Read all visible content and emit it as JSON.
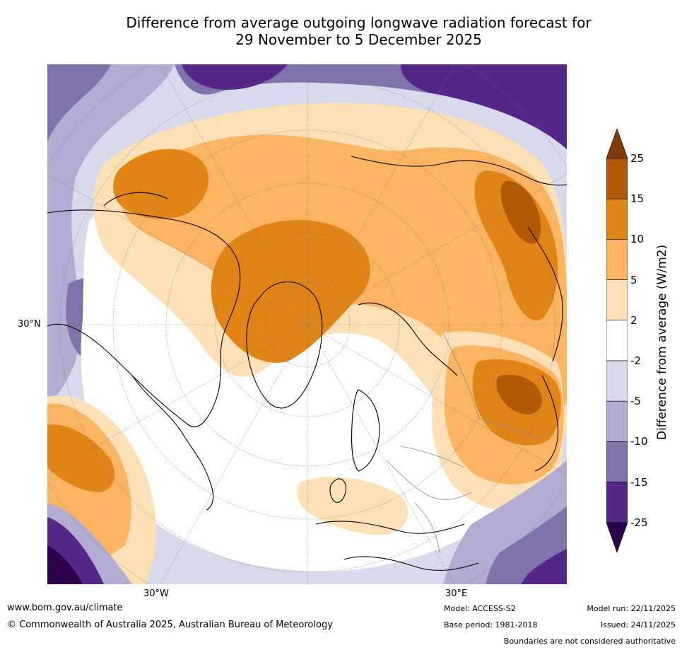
{
  "title": {
    "line1": "Difference from average outgoing longwave radiation forecast for",
    "line2": "29 November to 5 December 2025"
  },
  "map": {
    "lat_label": "30°N",
    "lon_labels": {
      "west": "30°W",
      "east": "30°E"
    },
    "colors": {
      "pos_2_5": "#fde0b6",
      "pos_5_10": "#fbb462",
      "pos_10_15": "#e08416",
      "pos_15_25": "#b35806",
      "pos_gt_25": "#7f3b08",
      "neutral": "#ffffff",
      "neg_2_5": "#d8daeb",
      "neg_5_10": "#b2abd2",
      "neg_10_15": "#8073ac",
      "neg_15_25": "#542788",
      "neg_lt_25": "#2d004b"
    }
  },
  "colorbar": {
    "title": "Difference from average (W/m2)",
    "ticks": [
      "25",
      "15",
      "10",
      "5",
      "2",
      "-2",
      "-5",
      "-10",
      "-15",
      "-25"
    ],
    "bins": [
      "#b35806",
      "#e08416",
      "#fbb462",
      "#fde0b6",
      "#ffffff",
      "#d8daeb",
      "#b2abd2",
      "#8073ac",
      "#542788"
    ],
    "over_color": "#7f3b08",
    "under_color": "#2d004b"
  },
  "footer": {
    "url": "www.bom.gov.au/climate",
    "copyright": "© Commonwealth of Australia 2025, Australian Bureau of Meteorology",
    "model": "Model: ACCESS-S2",
    "base_period": "Base period: 1981-2018",
    "model_run": "Model run: 22/11/2025",
    "issued": "Issued: 24/11/2025",
    "boundaries": "Boundaries are not considered authoritative"
  }
}
